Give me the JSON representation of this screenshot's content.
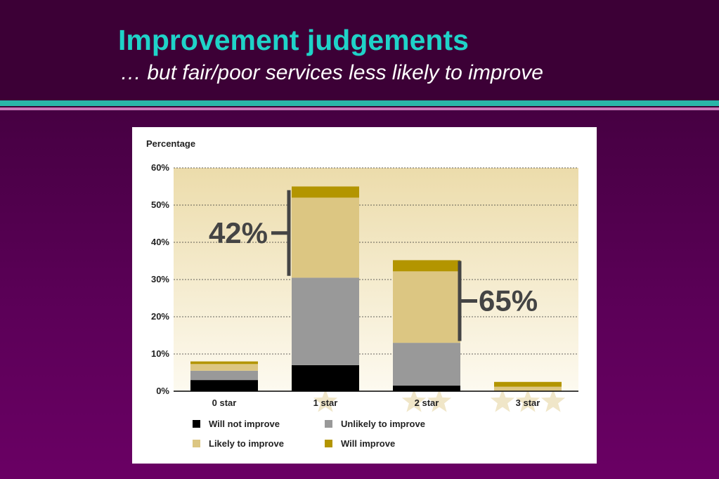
{
  "slide": {
    "title": "Improvement judgements",
    "subtitle": "… but fair/poor services less likely to improve"
  },
  "colors": {
    "title": "#1fd3c8",
    "background": "#5c0058",
    "will_not_improve": "#000000",
    "unlikely_to_improve": "#999999",
    "likely_to_improve": "#dcc682",
    "will_improve": "#b39500",
    "star": "#f0e6c8",
    "callout": "#444444"
  },
  "chart_data": {
    "type": "bar",
    "stacked": true,
    "ylabel": "Percentage",
    "ylim": [
      0,
      60
    ],
    "yticks": [
      "0%",
      "10%",
      "20%",
      "30%",
      "40%",
      "50%",
      "60%"
    ],
    "categories": [
      "0 star",
      "1 star",
      "2 star",
      "3 star"
    ],
    "stars_per_category": [
      0,
      1,
      2,
      3
    ],
    "series": [
      {
        "name": "Will not improve",
        "color": "#000000",
        "values": [
          3.0,
          7.0,
          1.5,
          0.0
        ]
      },
      {
        "name": "Unlikely to improve",
        "color": "#999999",
        "values": [
          2.5,
          23.5,
          11.5,
          0.0
        ]
      },
      {
        "name": "Likely to improve",
        "color": "#dcc682",
        "values": [
          1.8,
          21.5,
          19.2,
          1.2
        ]
      },
      {
        "name": "Will improve",
        "color": "#b39500",
        "values": [
          0.7,
          3.0,
          3.0,
          1.3
        ]
      }
    ],
    "grid": true,
    "legend_position": "bottom",
    "annotations": [
      {
        "text": "42%",
        "category": "1 star",
        "from": 31,
        "to": 54,
        "side": "left"
      },
      {
        "text": "65%",
        "category": "2 star",
        "from": 13.5,
        "to": 35,
        "side": "right"
      }
    ]
  }
}
